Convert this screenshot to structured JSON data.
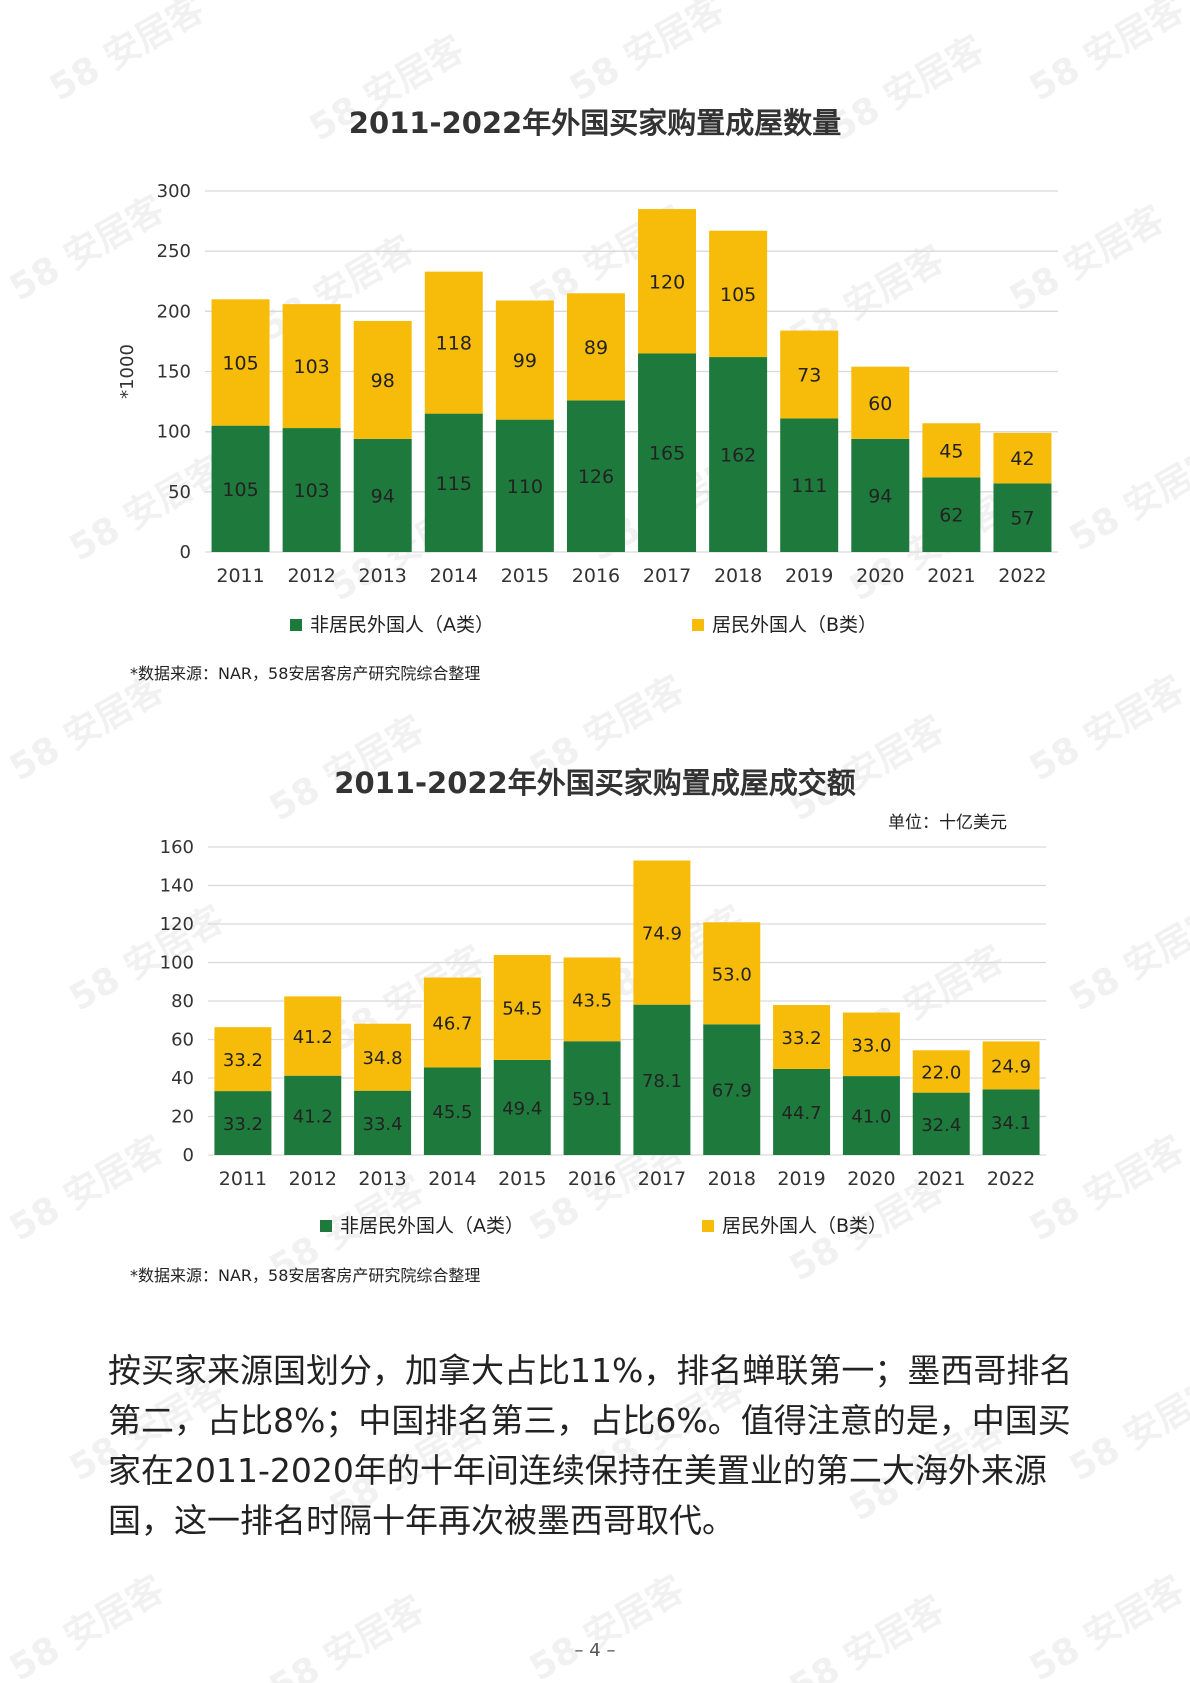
{
  "colors": {
    "series_a": "#1e7a3c",
    "series_b": "#f7bc0a",
    "grid": "#d9d9d9",
    "axis_text": "#333333"
  },
  "watermark": "58 安居客",
  "chart_data": [
    {
      "type": "bar",
      "stacked": true,
      "title": "2011-2022年外国买家购置成屋数量",
      "ylabel": "*1000",
      "categories": [
        "2011",
        "2012",
        "2013",
        "2014",
        "2015",
        "2016",
        "2017",
        "2018",
        "2019",
        "2020",
        "2021",
        "2022"
      ],
      "yticks": [
        "0",
        "50",
        "100",
        "150",
        "200",
        "250",
        "300"
      ],
      "ylim": [
        0,
        300
      ],
      "grid": true,
      "legend_position": "bottom",
      "series": [
        {
          "name": "非居民外国人（A类）",
          "values": [
            105,
            103,
            94,
            115,
            110,
            126,
            165,
            162,
            111,
            94,
            62,
            57
          ],
          "labels": [
            "105",
            "103",
            "94",
            "115",
            "110",
            "126",
            "165",
            "162",
            "111",
            "94",
            "62",
            "57"
          ]
        },
        {
          "name": "居民外国人（B类）",
          "values": [
            105,
            103,
            98,
            118,
            99,
            89,
            120,
            105,
            73,
            60,
            45,
            42
          ],
          "labels": [
            "105",
            "103",
            "98",
            "118",
            "99",
            "89",
            "120",
            "105",
            "73",
            "60",
            "45",
            "42"
          ]
        }
      ],
      "source": "*数据来源：NAR，58安居客房产研究院综合整理"
    },
    {
      "type": "bar",
      "stacked": true,
      "title": "2011-2022年外国买家购置成屋成交额",
      "unit": "单位：十亿美元",
      "categories": [
        "2011",
        "2012",
        "2013",
        "2014",
        "2015",
        "2016",
        "2017",
        "2018",
        "2019",
        "2020",
        "2021",
        "2022"
      ],
      "yticks": [
        "0",
        "20",
        "40",
        "60",
        "80",
        "100",
        "120",
        "140",
        "160"
      ],
      "ylim": [
        0,
        160
      ],
      "grid": true,
      "legend_position": "bottom",
      "series": [
        {
          "name": "非居民外国人（A类）",
          "values": [
            33.2,
            41.2,
            33.4,
            45.5,
            49.4,
            59.1,
            78.1,
            67.9,
            44.7,
            41.0,
            32.4,
            34.1
          ],
          "labels": [
            "33.2",
            "41.2",
            "33.4",
            "45.5",
            "49.4",
            "59.1",
            "78.1",
            "67.9",
            "44.7",
            "41.0",
            "32.4",
            "34.1"
          ]
        },
        {
          "name": "居民外国人（B类）",
          "values": [
            33.2,
            41.2,
            34.8,
            46.7,
            54.5,
            43.5,
            74.9,
            53.0,
            33.2,
            33.0,
            22.0,
            24.9
          ],
          "labels": [
            "33.2",
            "41.2",
            "34.8",
            "46.7",
            "54.5",
            "43.5",
            "74.9",
            "53.0",
            "33.2",
            "33.0",
            "22.0",
            "24.9"
          ]
        }
      ],
      "source": "*数据来源：NAR，58安居客房产研究院综合整理"
    }
  ],
  "body": {
    "paragraph": "按买家来源国划分，加拿大占比11%，排名蝉联第一；墨西哥排名第二，占比8%；中国排名第三，占比6%。值得注意的是，中国买家在2011-2020年的十年间连续保持在美置业的第二大海外来源国，这一排名时隔十年再次被墨西哥取代。"
  },
  "page_number": "– 4 –"
}
